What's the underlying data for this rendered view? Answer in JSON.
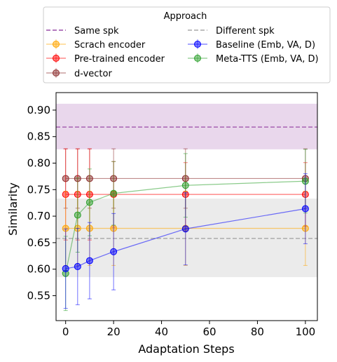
{
  "chart_data": {
    "type": "line",
    "xlabel": "Adaptation Steps",
    "ylabel": "Similarity",
    "xlim": [
      -4,
      105
    ],
    "ylim": [
      0.503,
      0.933
    ],
    "xticks": [
      0,
      20,
      40,
      60,
      80,
      100
    ],
    "yticks": [
      0.55,
      0.6,
      0.65,
      0.7,
      0.75,
      0.8,
      0.85,
      0.9
    ],
    "grid": false,
    "legend": {
      "title": "Approach",
      "placement": "above plot, two columns",
      "entries": [
        {
          "label": "Same spk",
          "ref": "same"
        },
        {
          "label": "Different spk",
          "ref": "diff"
        },
        {
          "label": "Scrach encoder",
          "ref": "scratch"
        },
        {
          "label": "Baseline (Emb, VA, D)",
          "ref": "baseline"
        },
        {
          "label": "Pre-trained encoder",
          "ref": "pretrained"
        },
        {
          "label": "Meta-TTS (Emb, VA, D)",
          "ref": "meta"
        },
        {
          "label": "d-vector",
          "ref": "dvector"
        }
      ]
    },
    "reference_lines": [
      {
        "id": "same",
        "name": "Same spk",
        "y": 0.868,
        "band": [
          0.826,
          0.912
        ],
        "color": "#9b4fa8",
        "band_color": "#e9d7ec"
      },
      {
        "id": "diff",
        "name": "Different spk",
        "y": 0.658,
        "band": [
          0.585,
          0.733
        ],
        "color": "#a8a8a8",
        "band_color": "#ebebeb"
      }
    ],
    "series": [
      {
        "id": "dvector",
        "name": "d-vector",
        "color": "#8c2d2d",
        "x": [
          0,
          5,
          10,
          20,
          50,
          100
        ],
        "y": [
          0.771,
          0.771,
          0.771,
          0.771,
          0.771,
          0.771
        ],
        "err": [
          0.056,
          0.056,
          0.056,
          0.056,
          0.056,
          0.056
        ]
      },
      {
        "id": "pretrained",
        "name": "Pre-trained encoder",
        "color": "#ff0000",
        "x": [
          0,
          5,
          10,
          20,
          50,
          100
        ],
        "y": [
          0.741,
          0.741,
          0.741,
          0.741,
          0.741,
          0.741
        ],
        "err": [
          0.086,
          0.086,
          0.086,
          0.062,
          0.06,
          0.06
        ]
      },
      {
        "id": "scratch",
        "name": "Scrach encoder",
        "color": "#ffa500",
        "x": [
          0,
          5,
          10,
          20,
          50,
          100
        ],
        "y": [
          0.677,
          0.677,
          0.677,
          0.677,
          0.677,
          0.677
        ],
        "err": [
          0.07,
          0.07,
          0.07,
          0.07,
          0.07,
          0.07
        ]
      },
      {
        "id": "meta",
        "name": "Meta-TTS (Emb, VA, D)",
        "color": "#2ca02c",
        "x": [
          0,
          5,
          10,
          20,
          50,
          100
        ],
        "y": [
          0.592,
          0.702,
          0.726,
          0.743,
          0.758,
          0.766
        ],
        "err": [
          0.07,
          0.07,
          0.063,
          0.06,
          0.06,
          0.06
        ]
      },
      {
        "id": "baseline",
        "name": "Baseline (Emb, VA, D)",
        "color": "#0000ff",
        "x": [
          0,
          5,
          10,
          20,
          50,
          100
        ],
        "y": [
          0.601,
          0.605,
          0.616,
          0.633,
          0.676,
          0.714
        ],
        "err": [
          0.075,
          0.072,
          0.072,
          0.072,
          0.068,
          0.066
        ]
      }
    ]
  }
}
